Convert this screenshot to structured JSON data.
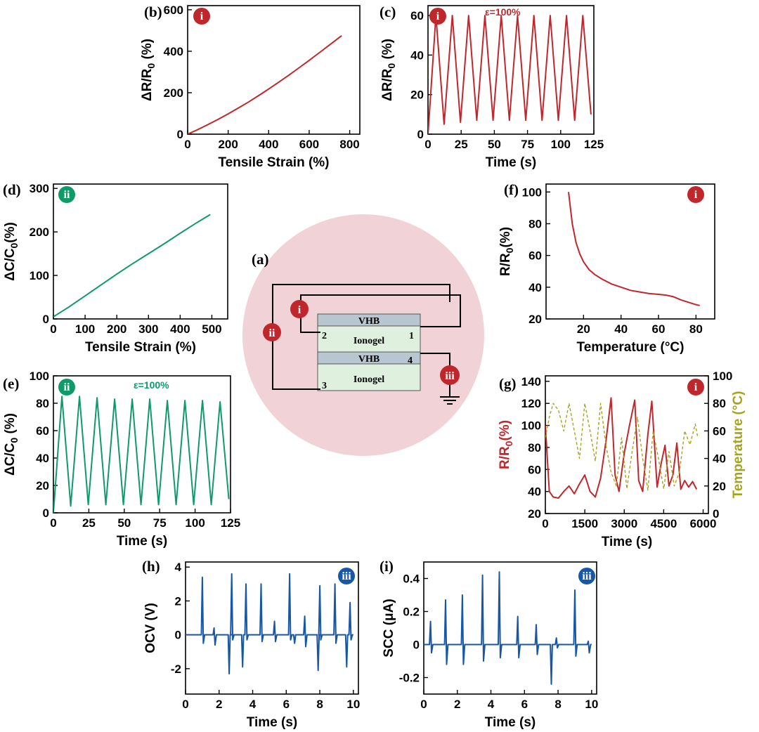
{
  "colors": {
    "red": "#c0272d",
    "green": "#0f9a6a",
    "blue": "#1757a5",
    "olive": "#a5a31e",
    "circle": "#f1d3d7",
    "vhb": "#b7c6d0",
    "ionogel": "#dff0df"
  },
  "schematic": {
    "label": "(a)",
    "layers": [
      "VHB",
      "Ionogel",
      "VHB",
      "Ionogel"
    ],
    "terminals": [
      "1",
      "2",
      "3",
      "4"
    ],
    "badges": [
      {
        "text": "i",
        "color": "#c0272d"
      },
      {
        "text": "ii",
        "color": "#c0272d"
      },
      {
        "text": "iii",
        "color": "#c0272d"
      }
    ]
  },
  "chart_data": [
    {
      "id": "b",
      "label": "(b)",
      "badge": "i",
      "badge_color": "#c0272d",
      "annotation": "",
      "type": "line",
      "xlabel": "Tensile Strain (%)",
      "ylabel": "ΔR/R0 (%)",
      "ylabel_main": "ΔR/R",
      "ylabel_sub": "0",
      "ylabel_tail": " (%)",
      "xlim": [
        0,
        850
      ],
      "ylim": [
        0,
        620
      ],
      "xticks": [
        0,
        200,
        400,
        600,
        800
      ],
      "yticks": [
        0,
        200,
        400,
        600
      ],
      "series": [
        {
          "color": "#c0272d",
          "x": [
            0,
            50,
            100,
            150,
            200,
            250,
            300,
            350,
            400,
            450,
            500,
            550,
            600,
            650,
            700,
            760
          ],
          "y": [
            0,
            22,
            46,
            71,
            98,
            126,
            155,
            186,
            218,
            251,
            285,
            320,
            356,
            393,
            430,
            475
          ]
        }
      ]
    },
    {
      "id": "c",
      "label": "(c)",
      "badge": "i",
      "badge_color": "#c0272d",
      "annotation": "ε=100%",
      "annotation_color": "#c0272d",
      "type": "line",
      "xlabel": "Time (s)",
      "ylabel": "ΔR/R0 (%)",
      "ylabel_main": "ΔR/R",
      "ylabel_sub": "0",
      "ylabel_tail": " (%)",
      "xlim": [
        0,
        125
      ],
      "ylim": [
        0,
        65
      ],
      "xticks": [
        0,
        25,
        50,
        75,
        100,
        125
      ],
      "yticks": [
        0,
        20,
        40,
        60
      ],
      "series": [
        {
          "color": "#c0272d",
          "periodic": {
            "t0": 0,
            "period": 12.3,
            "first_peak": 6,
            "peaks": [
              60,
              60,
              60,
              60,
              60,
              60,
              60,
              60,
              60,
              60
            ],
            "valleys": [
              0,
              5,
              6,
              7,
              7,
              7,
              7,
              7,
              7,
              7,
              10
            ],
            "t_end": 125
          }
        }
      ]
    },
    {
      "id": "d",
      "label": "(d)",
      "badge": "ii",
      "badge_color": "#0f9a6a",
      "annotation": "",
      "type": "line",
      "xlabel": "Tensile Strain (%)",
      "ylabel": "ΔC/C0 (%)",
      "ylabel_main": "ΔC/C",
      "ylabel_sub": "0",
      "ylabel_tail": "(%)",
      "xlim": [
        0,
        550
      ],
      "ylim": [
        0,
        310
      ],
      "xticks": [
        0,
        100,
        200,
        300,
        400,
        500
      ],
      "yticks": [
        0,
        100,
        200,
        300
      ],
      "series": [
        {
          "color": "#0f9a6a",
          "x": [
            0,
            50,
            100,
            150,
            200,
            250,
            300,
            350,
            400,
            450,
            495
          ],
          "y": [
            5,
            28,
            53,
            78,
            103,
            127,
            150,
            173,
            197,
            220,
            240
          ]
        }
      ]
    },
    {
      "id": "e",
      "label": "(e)",
      "badge": "ii",
      "badge_color": "#0f9a6a",
      "annotation": "ε=100%",
      "annotation_color": "#0f9a6a",
      "type": "line",
      "xlabel": "Time (s)",
      "ylabel": "ΔC/C0 (%)",
      "ylabel_main": "ΔC/C",
      "ylabel_sub": "0",
      "ylabel_tail": " (%)",
      "xlim": [
        0,
        125
      ],
      "ylim": [
        0,
        100
      ],
      "xticks": [
        0,
        25,
        50,
        75,
        100,
        125
      ],
      "yticks": [
        0,
        20,
        40,
        60,
        80,
        100
      ],
      "series": [
        {
          "color": "#0f9a6a",
          "periodic": {
            "t0": 0,
            "period": 12.4,
            "first_peak": 6,
            "peaks": [
              85,
              85,
              84,
              83,
              83,
              83,
              82,
              82,
              82,
              81
            ],
            "valleys": [
              0,
              5,
              6,
              6,
              6,
              6,
              6,
              6,
              6,
              6,
              10
            ],
            "t_end": 125
          }
        }
      ]
    },
    {
      "id": "f",
      "label": "(f)",
      "badge": "i",
      "badge_color": "#c0272d",
      "annotation": "",
      "type": "line",
      "xlabel": "Temperature (°C)",
      "ylabel": "R/R0(%)",
      "ylabel_main": "R/R",
      "ylabel_sub": "0",
      "ylabel_tail": "(%)",
      "xlim": [
        0,
        90
      ],
      "ylim": [
        20,
        105
      ],
      "xticks": [
        20,
        40,
        60,
        80
      ],
      "yticks": [
        20,
        40,
        60,
        80,
        100
      ],
      "series": [
        {
          "color": "#c0272d",
          "x": [
            12,
            14,
            16,
            18,
            20,
            23,
            26,
            30,
            35,
            40,
            45,
            50,
            55,
            60,
            64,
            68,
            72,
            76,
            80,
            82
          ],
          "y": [
            100,
            80,
            68,
            61,
            56,
            51,
            48,
            45,
            42,
            40,
            38,
            37,
            36,
            35.5,
            35,
            34,
            32,
            30.5,
            29,
            28.5
          ]
        }
      ]
    },
    {
      "id": "g",
      "label": "(g)",
      "badge": "i",
      "badge_color": "#c0272d",
      "annotation": "",
      "type": "line",
      "xlabel": "Time (s)",
      "ylabel": "R/R0(%)",
      "ylabel_main": "R/R",
      "ylabel_sub": "0",
      "ylabel_tail": "(%)",
      "y2label": "Temperature (°C)",
      "xlim": [
        0,
        6200
      ],
      "ylim": [
        20,
        145
      ],
      "y2lim": [
        0,
        100
      ],
      "xticks": [
        0,
        1500,
        3000,
        4500,
        6000
      ],
      "yticks": [
        20,
        40,
        60,
        80,
        100,
        120,
        140
      ],
      "y2ticks": [
        0,
        20,
        40,
        60,
        80,
        100
      ],
      "series": [
        {
          "name": "R/R0",
          "color": "#c0272d",
          "x": [
            0,
            150,
            300,
            500,
            700,
            900,
            1100,
            1300,
            1500,
            1700,
            1900,
            2100,
            2300,
            2500,
            2650,
            2800,
            3000,
            3200,
            3400,
            3550,
            3700,
            3900,
            4050,
            4250,
            4400,
            4550,
            4700,
            4850,
            5000,
            5150,
            5300,
            5450,
            5600,
            5750
          ],
          "y": [
            100,
            40,
            35,
            34,
            40,
            45,
            38,
            47,
            55,
            40,
            35,
            52,
            85,
            125,
            55,
            40,
            75,
            100,
            123,
            50,
            40,
            92,
            122,
            44,
            65,
            82,
            45,
            55,
            84,
            42,
            50,
            44,
            49,
            42
          ]
        },
        {
          "name": "Temperature",
          "axis": "right",
          "color": "#a5a31e",
          "dashed": true,
          "x": [
            0,
            150,
            300,
            500,
            700,
            900,
            1100,
            1300,
            1500,
            1700,
            1900,
            2100,
            2300,
            2500,
            2700,
            2900,
            3100,
            3300,
            3500,
            3700,
            3900,
            4100,
            4300,
            4500,
            4700,
            4900,
            5100,
            5300,
            5500,
            5700,
            5800
          ],
          "y": [
            55,
            70,
            80,
            75,
            60,
            80,
            60,
            40,
            80,
            60,
            38,
            80,
            50,
            30,
            20,
            55,
            18,
            45,
            70,
            40,
            17,
            60,
            40,
            18,
            45,
            20,
            30,
            60,
            50,
            65,
            55
          ]
        }
      ]
    },
    {
      "id": "h",
      "label": "(h)",
      "badge": "iii",
      "badge_color": "#1757a5",
      "annotation": "",
      "type": "line",
      "xlabel": "Time (s)",
      "ylabel": "OCV (V)",
      "ylabel_main": "OCV (V)",
      "ylabel_sub": "",
      "ylabel_tail": "",
      "xlim": [
        0,
        10.3
      ],
      "ylim": [
        -3.5,
        4.3
      ],
      "xticks": [
        0,
        2,
        4,
        6,
        8,
        10
      ],
      "yticks": [
        -2,
        0,
        2,
        4
      ],
      "series": [
        {
          "color": "#1757a5",
          "spikes": {
            "t_end": 10,
            "events": [
              [
                1.0,
                3.4,
                -0.5
              ],
              [
                1.7,
                0.4,
                -0.6
              ],
              [
                2.6,
                -2.3,
                0
              ],
              [
                2.75,
                3.6,
                -0.3
              ],
              [
                3.4,
                -1.9,
                0
              ],
              [
                3.6,
                3.0,
                -0.3
              ],
              [
                4.5,
                3.0,
                -0.4
              ],
              [
                5.3,
                0.8,
                -0.4
              ],
              [
                6.2,
                3.6,
                -0.3
              ],
              [
                6.5,
                -0.5,
                0
              ],
              [
                7.1,
                1.1,
                -0.7
              ],
              [
                7.9,
                -2.1,
                0
              ],
              [
                8.0,
                2.9,
                -0.3
              ],
              [
                8.9,
                3.0,
                -0.5
              ],
              [
                9.6,
                -1.9,
                0
              ],
              [
                9.8,
                1.9,
                -0.3
              ]
            ]
          }
        }
      ]
    },
    {
      "id": "i",
      "label": "(i)",
      "badge": "iii",
      "badge_color": "#1757a5",
      "annotation": "",
      "type": "line",
      "xlabel": "Time (s)",
      "ylabel": "SCC (μA)",
      "ylabel_main": "SCC (μA)",
      "ylabel_sub": "",
      "ylabel_tail": "",
      "xlim": [
        0,
        10.3
      ],
      "ylim": [
        -0.3,
        0.5
      ],
      "xticks": [
        0,
        2,
        4,
        6,
        8,
        10
      ],
      "yticks": [
        -0.2,
        0.0,
        0.2,
        0.4
      ],
      "series": [
        {
          "color": "#1757a5",
          "spikes": {
            "t_end": 10,
            "events": [
              [
                0.4,
                0.14,
                -0.05
              ],
              [
                1.3,
                0.27,
                -0.12
              ],
              [
                2.3,
                0.3,
                -0.12
              ],
              [
                3.5,
                0.42,
                -0.1
              ],
              [
                4.5,
                0.44,
                -0.08
              ],
              [
                5.6,
                0.17,
                -0.08
              ],
              [
                6.7,
                0.12,
                -0.06
              ],
              [
                7.6,
                -0.24,
                0
              ],
              [
                7.9,
                0.04,
                -0.02
              ],
              [
                9.0,
                0.33,
                -0.07
              ],
              [
                9.8,
                0.02,
                -0.05
              ]
            ]
          }
        }
      ]
    }
  ]
}
